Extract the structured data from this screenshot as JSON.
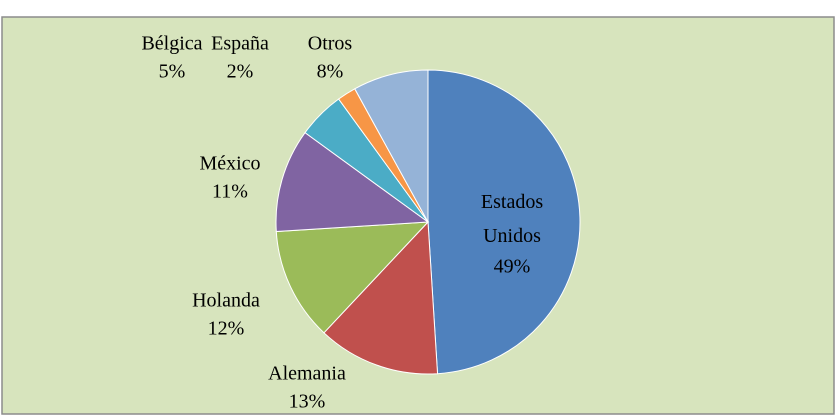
{
  "chart_data": {
    "type": "pie",
    "categories": [
      "Estados Unidos",
      "Alemania",
      "Holanda",
      "México",
      "Bélgica",
      "España",
      "Otros"
    ],
    "values": [
      49,
      13,
      12,
      11,
      5,
      2,
      8
    ],
    "value_labels": [
      "49%",
      "13%",
      "12%",
      "11%",
      "5%",
      "2%",
      "8%"
    ],
    "colors": [
      "#4f81bd",
      "#c0504d",
      "#9bbb59",
      "#8064a2",
      "#4bacc6",
      "#f79646",
      "#95b3d7"
    ]
  }
}
